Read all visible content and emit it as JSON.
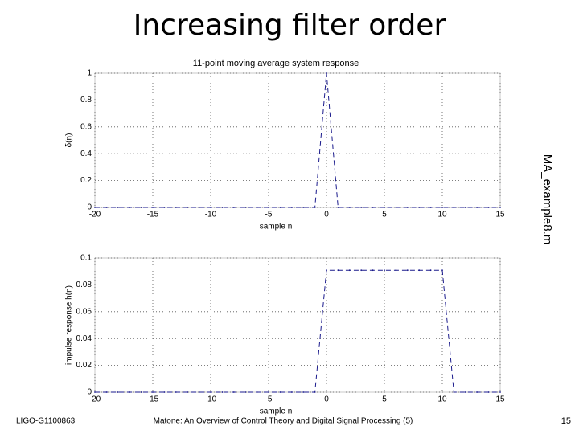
{
  "slide": {
    "title": "Increasing filter order",
    "side_label": "MA_example8.m",
    "footer_left": "LIGO-G1100863",
    "footer_center": "Matone: An Overview of Control Theory and Digital Signal Processing (5)",
    "page_number": "15"
  },
  "chart_data": [
    {
      "type": "line",
      "title": "11-point moving average system response",
      "y_label": "δ(n)",
      "x_label": "sample n",
      "x": [
        -20,
        -19,
        -18,
        -17,
        -16,
        -15,
        -14,
        -13,
        -12,
        -11,
        -10,
        -9,
        -8,
        -7,
        -6,
        -5,
        -4,
        -3,
        -2,
        -1,
        0,
        1,
        2,
        3,
        4,
        5,
        6,
        7,
        8,
        9,
        10,
        11,
        12,
        13,
        14,
        15
      ],
      "series": [
        {
          "color": "#1a1a8c",
          "values": [
            0,
            0,
            0,
            0,
            0,
            0,
            0,
            0,
            0,
            0,
            0,
            0,
            0,
            0,
            0,
            0,
            0,
            0,
            0,
            0,
            1,
            0,
            0,
            0,
            0,
            0,
            0,
            0,
            0,
            0,
            0,
            0,
            0,
            0,
            0,
            0
          ]
        }
      ],
      "xlim": [
        -20,
        15
      ],
      "xticks": [
        -20,
        -15,
        -10,
        -5,
        0,
        5,
        10,
        15
      ],
      "ylim": [
        0,
        1
      ],
      "yticks": [
        0,
        0.2,
        0.4,
        0.6,
        0.8,
        1
      ],
      "grid": true
    },
    {
      "type": "line",
      "y_label": "impulse response h(n)",
      "x_label": "sample n",
      "x": [
        -20,
        -19,
        -18,
        -17,
        -16,
        -15,
        -14,
        -13,
        -12,
        -11,
        -10,
        -9,
        -8,
        -7,
        -6,
        -5,
        -4,
        -3,
        -2,
        -1,
        0,
        1,
        2,
        3,
        4,
        5,
        6,
        7,
        8,
        9,
        10,
        11,
        12,
        13,
        14,
        15
      ],
      "series": [
        {
          "color": "#1a1a8c",
          "values": [
            0,
            0,
            0,
            0,
            0,
            0,
            0,
            0,
            0,
            0,
            0,
            0,
            0,
            0,
            0,
            0,
            0,
            0,
            0,
            0,
            0.0909,
            0.0909,
            0.0909,
            0.0909,
            0.0909,
            0.0909,
            0.0909,
            0.0909,
            0.0909,
            0.0909,
            0.0909,
            0,
            0,
            0,
            0,
            0
          ]
        }
      ],
      "xlim": [
        -20,
        15
      ],
      "xticks": [
        -20,
        -15,
        -10,
        -5,
        0,
        5,
        10,
        15
      ],
      "ylim": [
        0,
        0.1
      ],
      "yticks": [
        0,
        0.02,
        0.04,
        0.06,
        0.08,
        0.1
      ],
      "grid": true
    }
  ]
}
